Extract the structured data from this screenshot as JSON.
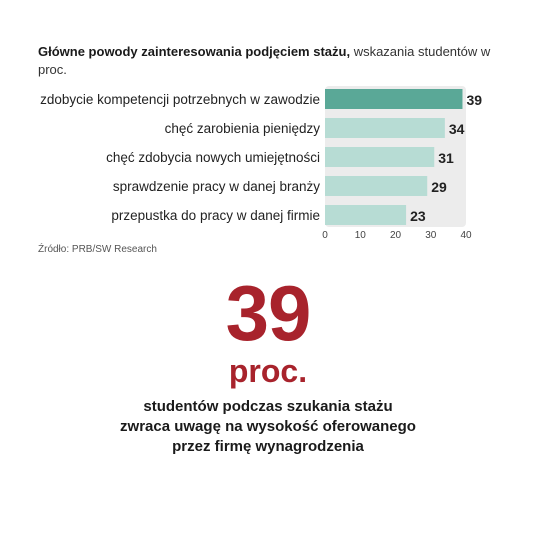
{
  "title": {
    "bold": "Główne powody zainteresowania podjęciem stażu,",
    "normal": " wskazania studentów w proc."
  },
  "source": "Źródło: PRB/SW Research",
  "highlight": {
    "number": "39",
    "unit": "proc.",
    "caption": "studentów podczas szukania stażu zwraca uwagę na wysokość oferowanego przez firmę wynagrodzenia"
  },
  "colors": {
    "top_bar": "#5aa897",
    "other_bars": "#b7dcd4",
    "plot_bg": "#ececec",
    "highlight": "#a8232c"
  },
  "chart_data": {
    "type": "bar",
    "orientation": "horizontal",
    "categories": [
      "zdobycie kompetencji potrzebnych w zawodzie",
      "chęć zarobienia pieniędzy",
      "chęć zdobycia nowych umiejętności",
      "sprawdzenie pracy w danej branży",
      "przepustka do pracy w danej firmie"
    ],
    "values": [
      39,
      34,
      31,
      29,
      23
    ],
    "xlim": [
      0,
      40
    ],
    "xticks": [
      0,
      10,
      20,
      30,
      40
    ],
    "grid": false
  }
}
